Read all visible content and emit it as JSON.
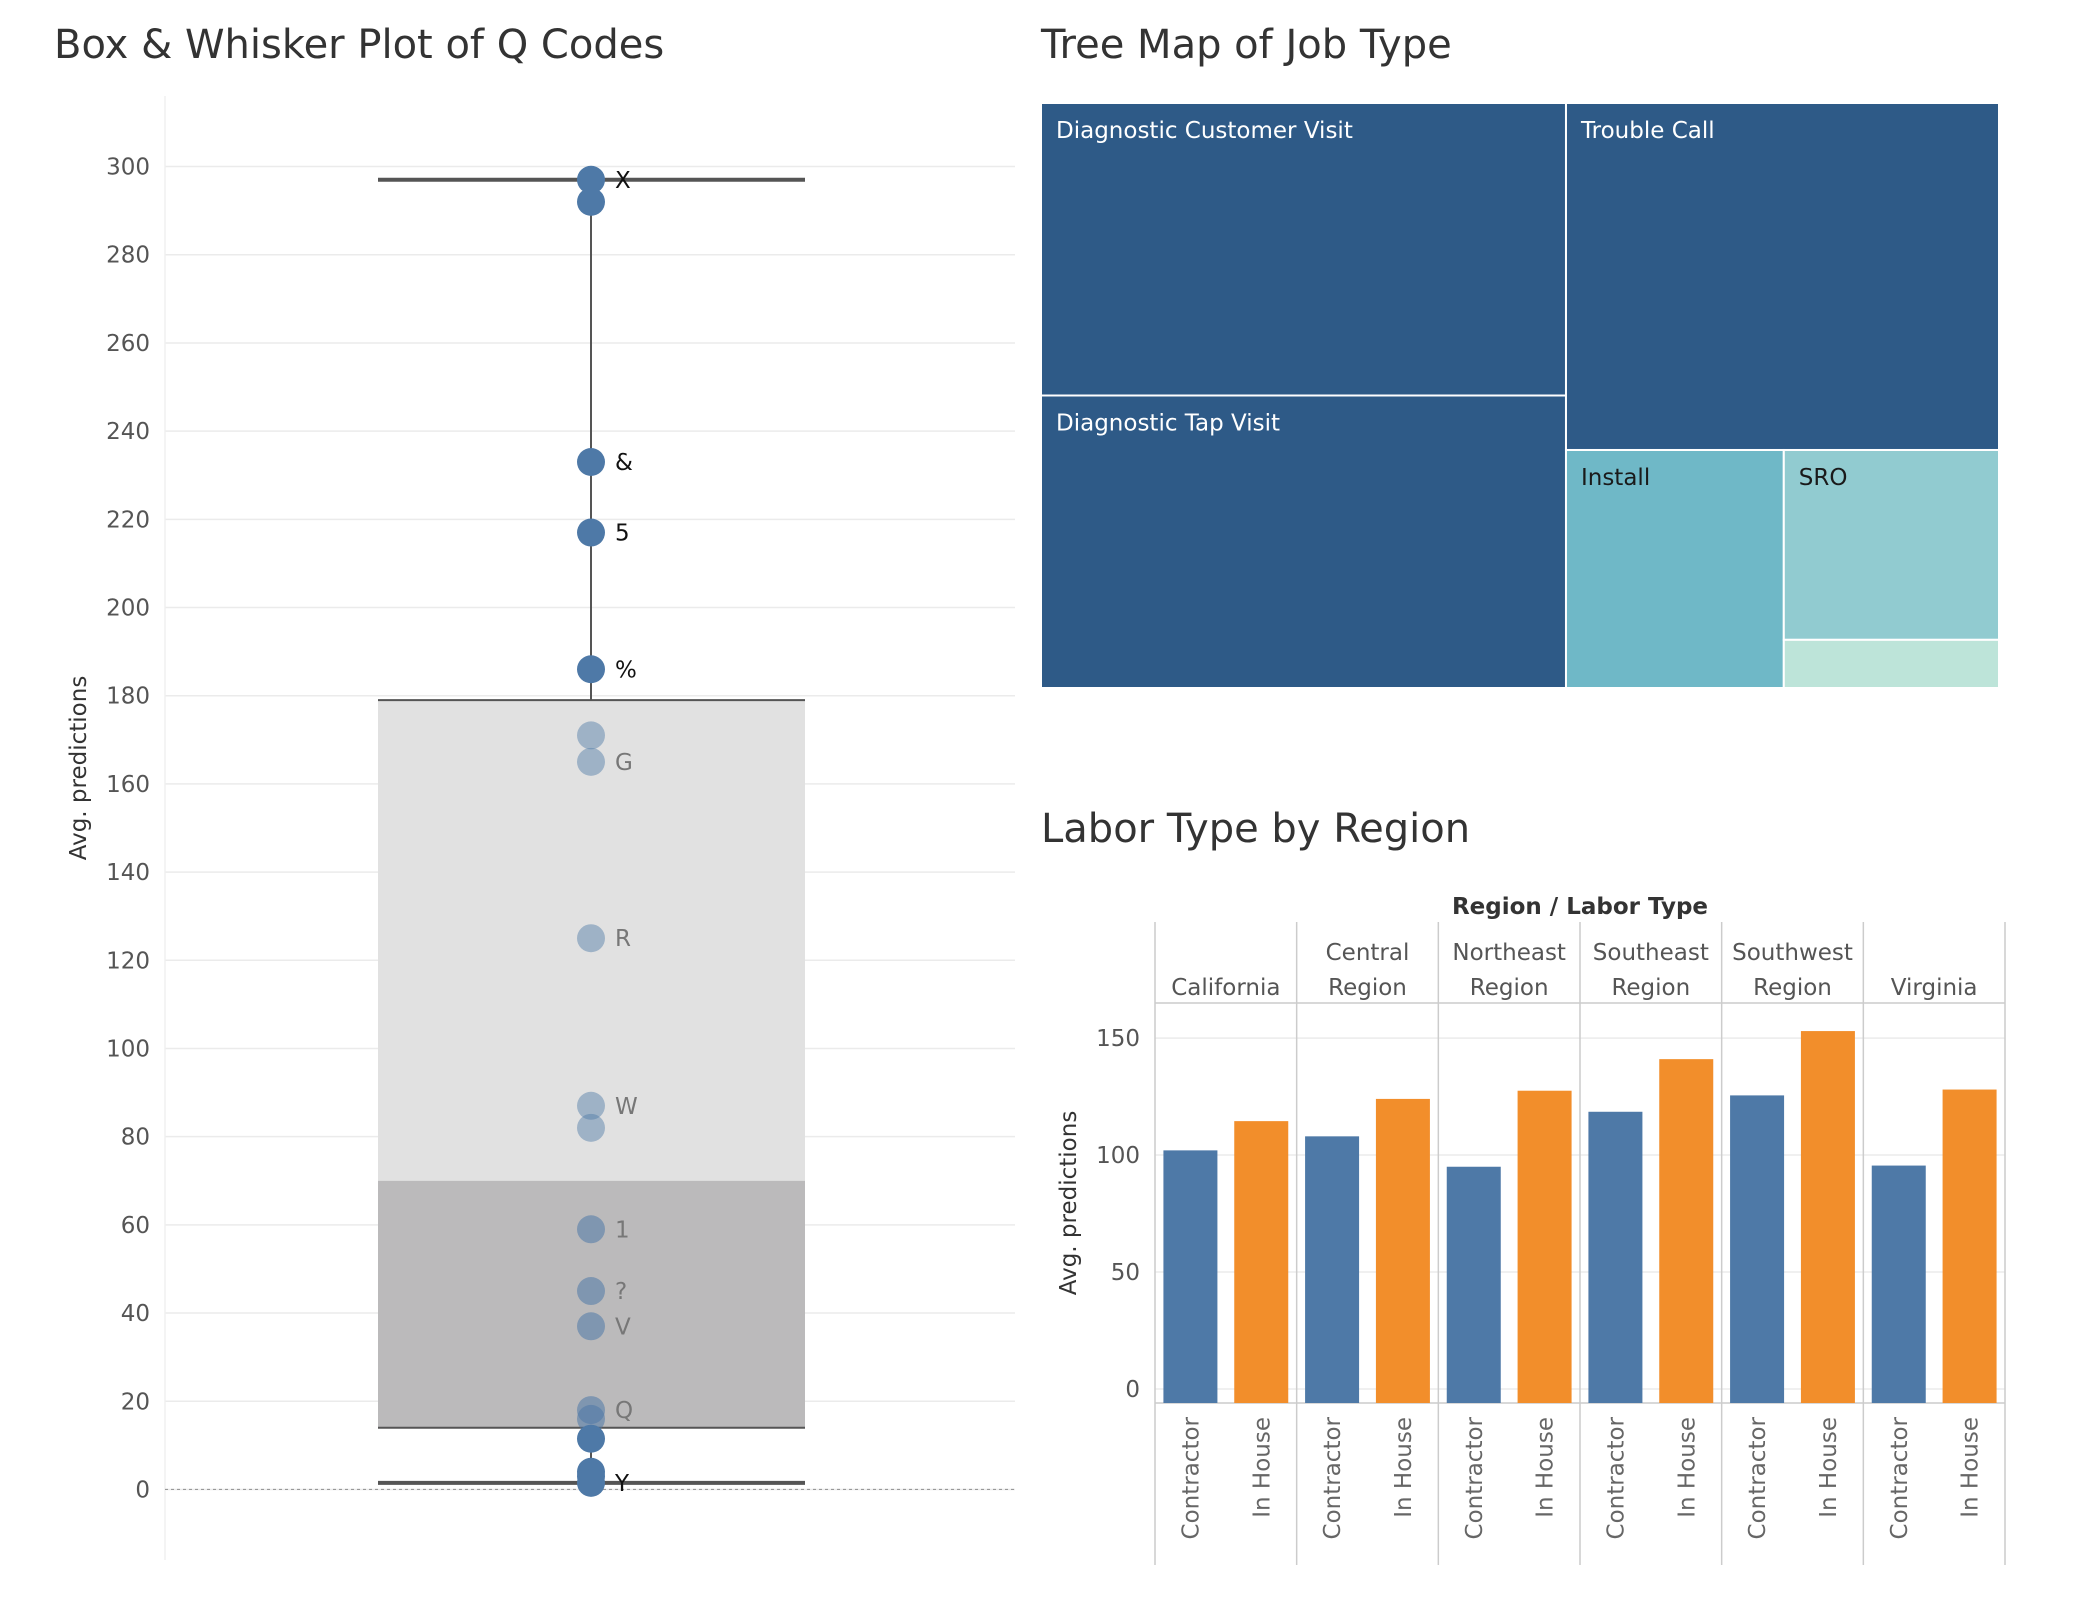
{
  "box_title": "Box & Whisker Plot of Q Codes",
  "tree_title": "Tree Map of Job Type",
  "bar_title": "Labor Type by Region",
  "colors": {
    "blue": "#4e79a7",
    "dark_blue": "#2e5a87",
    "orange": "#f28e2b",
    "teal": "#6fb8c7",
    "light_teal": "#91cbd0",
    "mint": "#bde4d9",
    "box_upper": "#e1e1e1",
    "box_lower": "#bbbabb",
    "grid": "#ebebeb"
  },
  "chart_data": [
    {
      "type": "scatter",
      "title": "Box & Whisker Plot of Q Codes",
      "ylabel": "Avg. predictions",
      "ylim": [
        -16,
        316
      ],
      "yticks": [
        0,
        20,
        40,
        60,
        80,
        100,
        120,
        140,
        160,
        180,
        200,
        220,
        240,
        260,
        280,
        300
      ],
      "box": {
        "whisker_low": 1.5,
        "q1": 14,
        "median": 70,
        "q3": 179,
        "whisker_high": 297
      },
      "points": [
        {
          "y": 297,
          "label": "X"
        },
        {
          "y": 292,
          "label": ""
        },
        {
          "y": 233,
          "label": "&"
        },
        {
          "y": 217,
          "label": "5"
        },
        {
          "y": 186,
          "label": "%"
        },
        {
          "y": 171,
          "label": ""
        },
        {
          "y": 165,
          "label": "G"
        },
        {
          "y": 125,
          "label": "R"
        },
        {
          "y": 87,
          "label": "W"
        },
        {
          "y": 82,
          "label": ""
        },
        {
          "y": 59,
          "label": "1"
        },
        {
          "y": 45,
          "label": "?"
        },
        {
          "y": 37,
          "label": "V"
        },
        {
          "y": 18,
          "label": "Q"
        },
        {
          "y": 16,
          "label": ""
        },
        {
          "y": 11.5,
          "label": ""
        },
        {
          "y": 4,
          "label": ""
        },
        {
          "y": 3,
          "label": ""
        },
        {
          "y": 1.5,
          "label": "Y"
        }
      ]
    },
    {
      "type": "treemap",
      "title": "Tree Map of Job Type",
      "items": [
        {
          "label": "Diagnostic Customer Visit",
          "share": 0.274,
          "color": "#2e5a87",
          "text_color": "#ffffff"
        },
        {
          "label": "Diagnostic Tap Visit",
          "share": 0.274,
          "color": "#2e5a87",
          "text_color": "#ffffff"
        },
        {
          "label": "Trouble Call",
          "share": 0.2681,
          "color": "#2e5a87",
          "text_color": "#ffffff"
        },
        {
          "label": "Install",
          "share": 0.0925,
          "color": "#6fb8c7",
          "text_color": "#1a1a1a"
        },
        {
          "label": "SRO",
          "share": 0.0729,
          "color": "#91cbd0",
          "text_color": "#1a1a1a"
        },
        {
          "label": "",
          "share": 0.0185,
          "color": "#bde4d9",
          "text_color": "#1a1a1a"
        }
      ]
    },
    {
      "type": "bar",
      "title": "Labor Type by Region",
      "header": "Region / Labor Type",
      "ylabel": "Avg. predictions",
      "ylim": [
        -6,
        165
      ],
      "yticks": [
        0,
        50,
        100,
        150
      ],
      "regions": [
        {
          "name": [
            "California"
          ],
          "values": [
            {
              "labor": "Contractor",
              "value": 102
            },
            {
              "labor": "In House",
              "value": 114.5
            }
          ]
        },
        {
          "name": [
            "Central",
            "Region"
          ],
          "values": [
            {
              "labor": "Contractor",
              "value": 108
            },
            {
              "labor": "In House",
              "value": 124
            }
          ]
        },
        {
          "name": [
            "Northeast",
            "Region"
          ],
          "values": [
            {
              "labor": "Contractor",
              "value": 95
            },
            {
              "labor": "In House",
              "value": 127.5
            }
          ]
        },
        {
          "name": [
            "Southeast",
            "Region"
          ],
          "values": [
            {
              "labor": "Contractor",
              "value": 118.5
            },
            {
              "labor": "In House",
              "value": 141
            }
          ]
        },
        {
          "name": [
            "Southwest",
            "Region"
          ],
          "values": [
            {
              "labor": "Contractor",
              "value": 125.5
            },
            {
              "labor": "In House",
              "value": 153
            }
          ]
        },
        {
          "name": [
            "Virginia"
          ],
          "values": [
            {
              "labor": "Contractor",
              "value": 95.5
            },
            {
              "labor": "In House",
              "value": 128
            }
          ]
        }
      ]
    }
  ]
}
